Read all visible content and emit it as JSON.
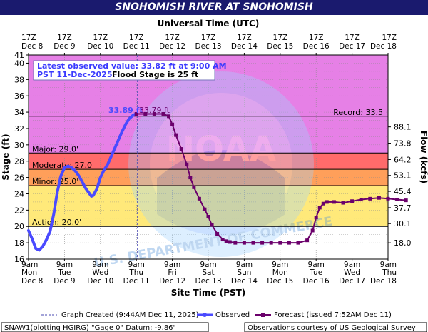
{
  "page": {
    "title": "SNOHOMISH RIVER AT SNOHOMISH",
    "top_axis_title": "Universal Time (UTC)",
    "bottom_axis_title": "Site Time (PST)",
    "left_axis_title": "Stage (ft)",
    "right_axis_title": "Flow (kcfs)"
  },
  "info_box": {
    "line1": "Latest observed value: 33.82 ft at 9:00 AM",
    "line2_a": "PST 11-Dec-2025.",
    "line2_b": "Flood Stage is 25 ft"
  },
  "labels": {
    "observed_peak": "33.89 ft",
    "forecast_peak": "33.79 ft"
  },
  "thresholds": [
    {
      "label": "Record: 33.5'",
      "value": 33.5
    },
    {
      "label": "Major: 29.0'",
      "value": 29.0
    },
    {
      "label": "Moderate: 27.0'",
      "value": 27.0
    },
    {
      "label": "Minor: 25.0'",
      "value": 25.0
    },
    {
      "label": "Action: 20.0'",
      "value": 20.0
    }
  ],
  "legend": {
    "created": "Graph Created (9:44AM Dec 11, 2025)",
    "observed": "Observed",
    "forecast": "Forecast (issued 7:52AM Dec 11)"
  },
  "footer": {
    "left": "SNAW1(plotting HGIRG) \"Gage 0\" Datum: -9.86'",
    "right": "Observations courtesy of US Geological Survey"
  },
  "colors": {
    "title_bg": "#1a1a6e",
    "major_band": "#e680e6",
    "moderate_band": "#ff6b6b",
    "minor_band": "#ff9f5a",
    "action_band": "#ffe97a",
    "observed": "#4a4aff",
    "forecast": "#6b006b"
  },
  "chart_data": {
    "type": "line",
    "y_left": {
      "min": 16,
      "max": 41,
      "ticks": [
        16,
        18,
        20,
        22,
        24,
        26,
        28,
        30,
        32,
        34,
        36,
        38,
        40,
        41
      ]
    },
    "y_right_ticks": [
      {
        "label": "18.0",
        "stage": 18.0
      },
      {
        "label": "30.1",
        "stage": 20.35
      },
      {
        "label": "37.7",
        "stage": 22.3
      },
      {
        "label": "45.4",
        "stage": 24.3
      },
      {
        "label": "53.1",
        "stage": 26.25
      },
      {
        "label": "64.2",
        "stage": 28.2
      },
      {
        "label": "73.8",
        "stage": 30.2
      },
      {
        "label": "88.1",
        "stage": 32.2
      }
    ],
    "x_days": [
      {
        "top_time": "17Z",
        "top_date": "Dec 8",
        "bottom_time": "9am",
        "bottom_day": "Mon",
        "bottom_date": "Dec 8"
      },
      {
        "top_time": "17Z",
        "top_date": "Dec 9",
        "bottom_time": "9am",
        "bottom_day": "Tue",
        "bottom_date": "Dec 9"
      },
      {
        "top_time": "17Z",
        "top_date": "Dec 10",
        "bottom_time": "9am",
        "bottom_day": "Wed",
        "bottom_date": "Dec 10"
      },
      {
        "top_time": "17Z",
        "top_date": "Dec 11",
        "bottom_time": "9am",
        "bottom_day": "Thu",
        "bottom_date": "Dec 11"
      },
      {
        "top_time": "17Z",
        "top_date": "Dec 12",
        "bottom_time": "9am",
        "bottom_day": "Fri",
        "bottom_date": "Dec 12"
      },
      {
        "top_time": "17Z",
        "top_date": "Dec 13",
        "bottom_time": "9am",
        "bottom_day": "Sat",
        "bottom_date": "Dec 13"
      },
      {
        "top_time": "17Z",
        "top_date": "Dec 14",
        "bottom_time": "9am",
        "bottom_day": "Sun",
        "bottom_date": "Dec 14"
      },
      {
        "top_time": "17Z",
        "top_date": "Dec 15",
        "bottom_time": "9am",
        "bottom_day": "Mon",
        "bottom_date": "Dec 15"
      },
      {
        "top_time": "17Z",
        "top_date": "Dec 16",
        "bottom_time": "9am",
        "bottom_day": "Tue",
        "bottom_date": "Dec 16"
      },
      {
        "top_time": "17Z",
        "top_date": "Dec 17",
        "bottom_time": "9am",
        "bottom_day": "Wed",
        "bottom_date": "Dec 17"
      },
      {
        "top_time": "17Z",
        "top_date": "Dec 18",
        "bottom_time": "9am",
        "bottom_day": "Thu",
        "bottom_date": "Dec 18"
      }
    ],
    "created_marker_day": 3.03,
    "observed": [
      [
        0,
        19.5
      ],
      [
        0.1,
        18.5
      ],
      [
        0.2,
        17.3
      ],
      [
        0.3,
        17.1
      ],
      [
        0.4,
        17.6
      ],
      [
        0.5,
        18.4
      ],
      [
        0.6,
        19.4
      ],
      [
        0.7,
        21.5
      ],
      [
        0.8,
        24.2
      ],
      [
        0.9,
        26.2
      ],
      [
        1.0,
        27.2
      ],
      [
        1.1,
        27.4
      ],
      [
        1.2,
        27.2
      ],
      [
        1.3,
        26.8
      ],
      [
        1.4,
        26.2
      ],
      [
        1.5,
        25.4
      ],
      [
        1.6,
        24.6
      ],
      [
        1.7,
        24.0
      ],
      [
        1.75,
        23.7
      ],
      [
        1.8,
        23.8
      ],
      [
        1.9,
        24.6
      ],
      [
        2.0,
        26.0
      ],
      [
        2.1,
        26.9
      ],
      [
        2.2,
        27.6
      ],
      [
        2.3,
        28.6
      ],
      [
        2.4,
        29.6
      ],
      [
        2.5,
        30.6
      ],
      [
        2.6,
        31.6
      ],
      [
        2.7,
        32.5
      ],
      [
        2.8,
        33.2
      ],
      [
        2.9,
        33.6
      ],
      [
        3.0,
        33.82
      ]
    ],
    "forecast": [
      [
        3.0,
        33.79
      ],
      [
        3.25,
        33.79
      ],
      [
        3.5,
        33.79
      ],
      [
        3.75,
        33.79
      ],
      [
        3.9,
        33.5
      ],
      [
        4.0,
        32.5
      ],
      [
        4.1,
        31.2
      ],
      [
        4.25,
        29.5
      ],
      [
        4.4,
        27.6
      ],
      [
        4.5,
        26.0
      ],
      [
        4.6,
        24.8
      ],
      [
        4.75,
        23.4
      ],
      [
        4.9,
        22.1
      ],
      [
        5.0,
        21.2
      ],
      [
        5.1,
        20.2
      ],
      [
        5.25,
        19.1
      ],
      [
        5.4,
        18.4
      ],
      [
        5.5,
        18.2
      ],
      [
        5.6,
        18.1
      ],
      [
        5.75,
        18.0
      ],
      [
        6.0,
        18.0
      ],
      [
        6.25,
        18.0
      ],
      [
        6.5,
        18.0
      ],
      [
        6.75,
        18.0
      ],
      [
        7.0,
        18.0
      ],
      [
        7.25,
        18.0
      ],
      [
        7.5,
        18.0
      ],
      [
        7.75,
        18.3
      ],
      [
        7.9,
        19.5
      ],
      [
        8.0,
        21.1
      ],
      [
        8.1,
        22.3
      ],
      [
        8.2,
        22.8
      ],
      [
        8.3,
        23.0
      ],
      [
        8.5,
        23.0
      ],
      [
        8.75,
        22.9
      ],
      [
        9.0,
        23.1
      ],
      [
        9.25,
        23.3
      ],
      [
        9.5,
        23.4
      ],
      [
        9.75,
        23.5
      ],
      [
        10.0,
        23.4
      ],
      [
        10.25,
        23.3
      ],
      [
        10.5,
        23.2
      ]
    ]
  }
}
